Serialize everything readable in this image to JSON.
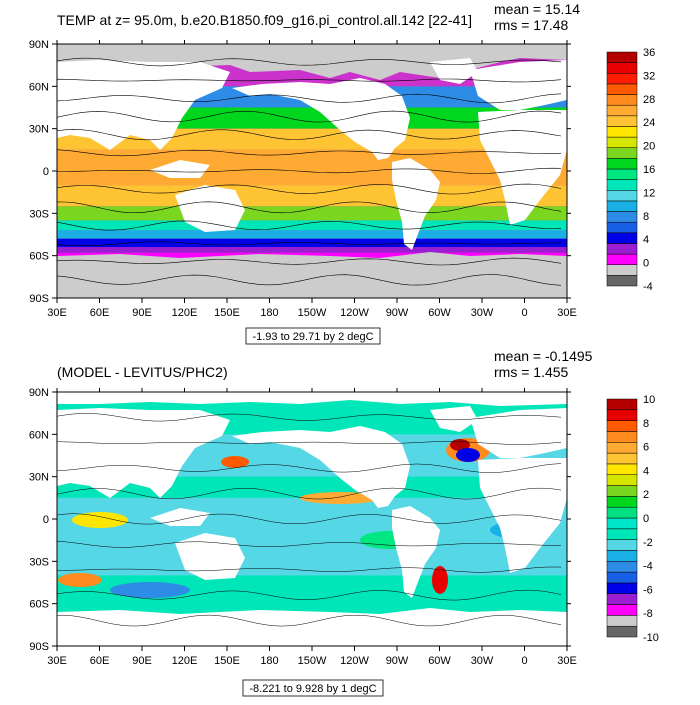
{
  "panels": [
    {
      "title": "TEMP at z=  95.0m, b.e20.B1850.f09_g16.pi_control.all.142 [22-41]",
      "stats": {
        "mean": "mean = 15.14",
        "rms": "rms = 17.48"
      },
      "x_ticks": [
        "30E",
        "60E",
        "90E",
        "120E",
        "150E",
        "180",
        "150W",
        "120W",
        "90W",
        "60W",
        "30W",
        "0",
        "30E"
      ],
      "y_ticks": [
        "90N",
        "60N",
        "30N",
        "0",
        "30S",
        "60S",
        "90S"
      ],
      "caption": "-1.93 to 29.71 by 2 degC",
      "colorbar": {
        "labels": [
          "36",
          "32",
          "28",
          "24",
          "20",
          "16",
          "12",
          "8",
          "4",
          "0",
          "-4"
        ],
        "colors": [
          "#666666",
          "#cccccc",
          "#ff00ff",
          "#9b1fd1",
          "#0000e6",
          "#1760e6",
          "#2d8ce6",
          "#1ab0e6",
          "#55d7e6",
          "#00e6b8",
          "#00e680",
          "#00d61e",
          "#7ad61e",
          "#d6e600",
          "#ffe600",
          "#ffc433",
          "#ffaa33",
          "#ff8a1e",
          "#ff5a00",
          "#ff1e00",
          "#e60000",
          "#b40000"
        ]
      },
      "map": {
        "lat_bands": [
          {
            "lat0": 60,
            "lat1": 75,
            "color": "#cc33cc"
          },
          {
            "lat0": 45,
            "lat1": 60,
            "color": "#2d8ce6"
          },
          {
            "lat0": 30,
            "lat1": 45,
            "color": "#00d61e"
          },
          {
            "lat0": 15,
            "lat1": 30,
            "color": "#ffc433"
          },
          {
            "lat0": -10,
            "lat1": 15,
            "color": "#ffaa33"
          },
          {
            "lat0": -25,
            "lat1": -10,
            "color": "#ffc433"
          },
          {
            "lat0": -35,
            "lat1": -25,
            "color": "#7ad61e"
          },
          {
            "lat0": -42,
            "lat1": -35,
            "color": "#00e6b8"
          },
          {
            "lat0": -48,
            "lat1": -42,
            "color": "#1ab0e6"
          },
          {
            "lat0": -54,
            "lat1": -48,
            "color": "#0000e6"
          },
          {
            "lat0": -58,
            "lat1": -54,
            "color": "#9b1fd1"
          },
          {
            "lat0": -62,
            "lat1": -58,
            "color": "#ff00ff"
          }
        ]
      }
    },
    {
      "title": "(MODEL - LEVITUS/PHC2)",
      "stats": {
        "mean": "mean = -0.1495",
        "rms": "rms = 1.455"
      },
      "x_ticks": [
        "30E",
        "60E",
        "90E",
        "120E",
        "150E",
        "180",
        "150W",
        "120W",
        "90W",
        "60W",
        "30W",
        "0",
        "30E"
      ],
      "y_ticks": [
        "90N",
        "60N",
        "30N",
        "0",
        "30S",
        "60S",
        "90S"
      ],
      "caption": "-8.221 to 9.928 by 1 degC",
      "colorbar": {
        "labels": [
          "10",
          "8",
          "6",
          "4",
          "2",
          "0",
          "-2",
          "-4",
          "-6",
          "-8",
          "-10"
        ],
        "colors": [
          "#666666",
          "#cccccc",
          "#ff00ff",
          "#9b1fd1",
          "#0000e6",
          "#1760e6",
          "#2d8ce6",
          "#1ab0e6",
          "#55d7e6",
          "#00e6b8",
          "#00e6c8",
          "#00e080",
          "#00d61e",
          "#7ad61e",
          "#d6e600",
          "#ffe600",
          "#ffc433",
          "#ffaa33",
          "#ff8a1e",
          "#ff5a00",
          "#e60000",
          "#b40000"
        ]
      },
      "map": {
        "lat_bands": [
          {
            "lat0": 60,
            "lat1": 80,
            "color": "#00e6b8"
          },
          {
            "lat0": 30,
            "lat1": 60,
            "color": "#55d7e6"
          },
          {
            "lat0": 15,
            "lat1": 30,
            "color": "#00e6b8"
          },
          {
            "lat0": -15,
            "lat1": 15,
            "color": "#55d7e6"
          },
          {
            "lat0": -40,
            "lat1": -15,
            "color": "#55d7e6"
          },
          {
            "lat0": -60,
            "lat1": -40,
            "color": "#00e6b8"
          },
          {
            "lat0": -70,
            "lat1": -60,
            "color": "#00e6b8"
          }
        ]
      }
    }
  ]
}
